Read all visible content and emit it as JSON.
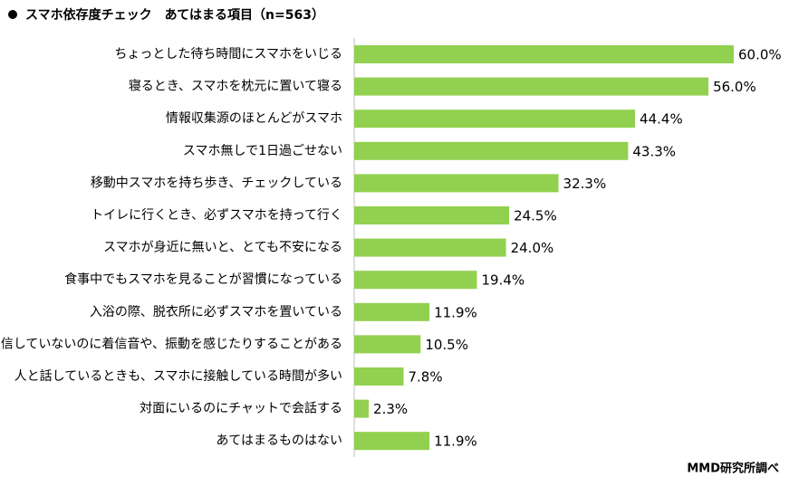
{
  "chart_data": {
    "type": "bar",
    "orientation": "horizontal",
    "title": "スマホ依存度チェック　あてはまる項目（n=563）",
    "source": "MMD研究所調べ",
    "categories": [
      "ちょっとした待ち時間にスマホをいじる",
      "寝るとき、スマホを枕元に置いて寝る",
      "情報収集源のほとんどがスマホ",
      "スマホ無しで1日過ごせない",
      "移動中スマホを持ち歩き、チェックしている",
      "トイレに行くとき、必ずスマホを持って行く",
      "スマホが身近に無いと、とても不安になる",
      "食事中でもスマホを見ることが習慣になっている",
      "入浴の際、脱衣所に必ずスマホを置いている",
      "着信していないのに着信音や、振動を感じたりすることがある",
      "人と話しているときも、スマホに接触している時間が多い",
      "対面にいるのにチャットで会話する",
      "あてはまるものはない"
    ],
    "values": [
      60.0,
      56.0,
      44.4,
      43.3,
      32.3,
      24.5,
      24.0,
      19.4,
      11.9,
      10.5,
      7.8,
      2.3,
      11.9
    ],
    "value_labels": [
      "60.0%",
      "56.0%",
      "44.4%",
      "43.3%",
      "32.3%",
      "24.5%",
      "24.0%",
      "19.4%",
      "11.9%",
      "10.5%",
      "7.8%",
      "2.3%",
      "11.9%"
    ],
    "color": "#92d050"
  }
}
